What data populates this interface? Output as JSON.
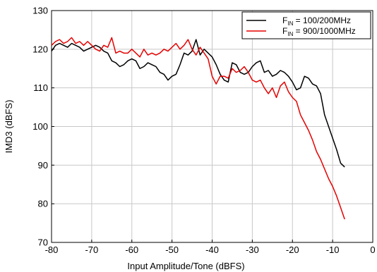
{
  "chart_data": {
    "type": "line",
    "xlabel": "Input Amplitude/Tone (dBFS)",
    "ylabel": "IMD3 (dBFS)",
    "xlim": [
      -80,
      0
    ],
    "ylim": [
      70,
      130
    ],
    "xticks": [
      -80,
      -70,
      -60,
      -50,
      -40,
      -30,
      -20,
      -10,
      0
    ],
    "yticks": [
      70,
      80,
      90,
      100,
      110,
      120,
      130
    ],
    "grid": true,
    "legend_position": "top-right",
    "series": [
      {
        "name_main": "F",
        "name_sub": "IN",
        "name_rest": " = 100/200MHz",
        "color": "#000000",
        "x": [
          -80,
          -79,
          -78,
          -77,
          -76,
          -75,
          -74,
          -73,
          -72,
          -71,
          -70,
          -69,
          -68,
          -67,
          -66,
          -65,
          -64,
          -63,
          -62,
          -61,
          -60,
          -59,
          -58,
          -57,
          -56,
          -55,
          -54,
          -53,
          -52,
          -51,
          -50,
          -49,
          -48,
          -47,
          -46,
          -45,
          -44,
          -43,
          -42,
          -41,
          -40,
          -39,
          -38,
          -37,
          -36,
          -35,
          -34,
          -33,
          -32,
          -31,
          -30,
          -29,
          -28,
          -27,
          -26,
          -25,
          -24,
          -23,
          -22,
          -21,
          -20,
          -19,
          -18,
          -17,
          -16,
          -15,
          -14,
          -13,
          -12,
          -11,
          -10,
          -9,
          -8,
          -7
        ],
        "y": [
          119.5,
          121,
          121.5,
          121,
          120.5,
          121.5,
          121,
          120.5,
          119.5,
          120,
          120.5,
          121,
          120.5,
          119.5,
          119,
          117,
          116.5,
          115.5,
          116,
          117,
          117.5,
          117,
          115,
          115.5,
          116.5,
          116,
          115.5,
          114,
          113.5,
          112,
          113,
          113.5,
          116,
          119,
          118.5,
          119.5,
          122.5,
          118.5,
          120,
          119,
          118,
          116,
          113.5,
          112,
          111.5,
          116.5,
          116,
          114,
          113.5,
          114,
          115.5,
          116.5,
          117,
          114,
          114.5,
          113,
          113.5,
          114.5,
          114,
          113,
          111.5,
          109.5,
          110,
          113,
          112.5,
          111,
          110.5,
          108.5,
          103,
          100,
          97,
          94,
          90.5,
          89.5
        ]
      },
      {
        "name_main": "F",
        "name_sub": "IN",
        "name_rest": " = 900/1000MHz",
        "color": "#e60000",
        "x": [
          -80,
          -79,
          -78,
          -77,
          -76,
          -75,
          -74,
          -73,
          -72,
          -71,
          -70,
          -69,
          -68,
          -67,
          -66,
          -65,
          -64,
          -63,
          -62,
          -61,
          -60,
          -59,
          -58,
          -57,
          -56,
          -55,
          -54,
          -53,
          -52,
          -51,
          -50,
          -49,
          -48,
          -47,
          -46,
          -45,
          -44,
          -43,
          -42,
          -41,
          -40,
          -39,
          -38,
          -37,
          -36,
          -35,
          -34,
          -33,
          -32,
          -31,
          -30,
          -29,
          -28,
          -27,
          -26,
          -25,
          -24,
          -23,
          -22,
          -21,
          -20,
          -19,
          -18,
          -17,
          -16,
          -15,
          -14,
          -13,
          -12,
          -11,
          -10,
          -9,
          -8,
          -7
        ],
        "y": [
          121,
          122,
          122.5,
          121.5,
          122,
          123,
          121.5,
          122,
          121,
          122,
          121,
          120,
          119.5,
          121,
          120.5,
          123,
          119,
          119.5,
          119,
          119,
          120,
          119,
          118,
          120,
          118.5,
          119,
          118.5,
          119,
          120,
          119.5,
          120.5,
          121.5,
          120,
          121,
          122.5,
          120,
          118.5,
          120.5,
          119,
          117.5,
          113,
          111,
          113,
          113,
          112.5,
          115,
          114,
          114.5,
          115.5,
          114,
          112,
          111.5,
          112,
          110,
          108.5,
          110,
          107.5,
          110.5,
          111.5,
          109,
          107.5,
          106.5,
          103,
          101,
          99,
          96.5,
          93.5,
          91.5,
          89,
          86.5,
          84.5,
          82,
          79,
          76
        ]
      }
    ]
  }
}
